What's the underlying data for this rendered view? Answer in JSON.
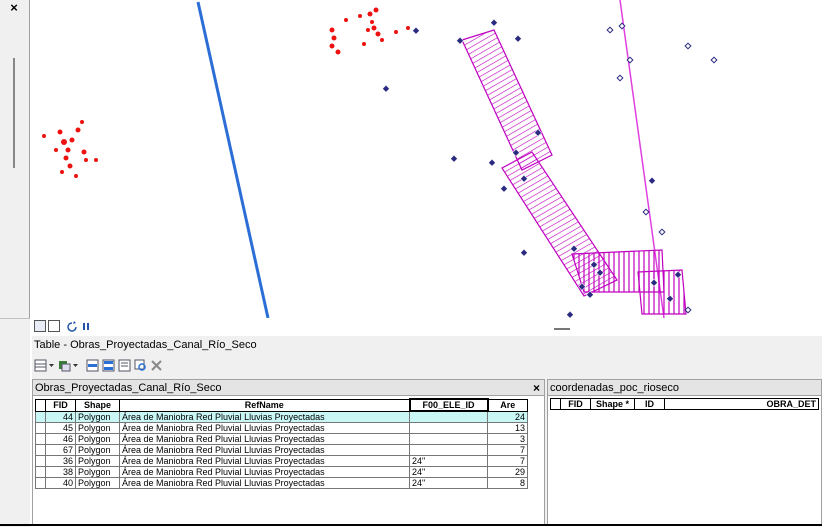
{
  "panel": {
    "close_glyph": "×"
  },
  "map_toolbar": {
    "icons": [
      "data-view-icon",
      "layout-view-icon",
      "refresh-icon",
      "pause-icon"
    ]
  },
  "table_window": {
    "title": "Table - Obras_Proyectadas_Canal_Río_Seco",
    "toolbar_icons": [
      "table-options-icon",
      "related-tables-icon",
      "select-by-attributes-icon",
      "switch-selection-icon",
      "clear-selection-icon",
      "zoom-to-selected-icon",
      "delete-selected-icon"
    ]
  },
  "left_table": {
    "tab_name": "Obras_Proyectadas_Canal_Río_Seco",
    "close_glyph": "×",
    "columns": [
      "FID",
      "Shape",
      "RefName",
      "F00_ELE_ID",
      "Are"
    ],
    "rows": [
      [
        "44",
        "Polygon",
        "Área de Maniobra Red Pluvial Lluvias Proyectadas",
        "",
        "24"
      ],
      [
        "45",
        "Polygon",
        "Área de Maniobra Red Pluvial Lluvias Proyectadas",
        "",
        "13"
      ],
      [
        "46",
        "Polygon",
        "Área de Maniobra Red Pluvial Lluvias Proyectadas",
        "",
        "3"
      ],
      [
        "67",
        "Polygon",
        "Área de Maniobra Red Pluvial Lluvias Proyectadas",
        "",
        "7"
      ],
      [
        "36",
        "Polygon",
        "Área de Maniobra Red Pluvial Lluvias Proyectadas",
        "24\"",
        "7"
      ],
      [
        "38",
        "Polygon",
        "Área de Maniobra Red Pluvial Lluvias Proyectadas",
        "24\"",
        "29"
      ],
      [
        "40",
        "Polygon",
        "Área de Maniobra Red Pluvial Lluvias Proyectadas",
        "24\"",
        "8"
      ]
    ],
    "highlight_color": "#c9f7f5"
  },
  "right_table": {
    "tab_name": "coordenadas_poc_rioseco",
    "columns": [
      "FID",
      "Shape *",
      "ID",
      "OBRA_DET"
    ]
  },
  "map_colors": {
    "line": "#2b6fd6",
    "polygon": "#c000c0",
    "red_points": "#ee1111",
    "blue_points": "#2a2a80"
  }
}
